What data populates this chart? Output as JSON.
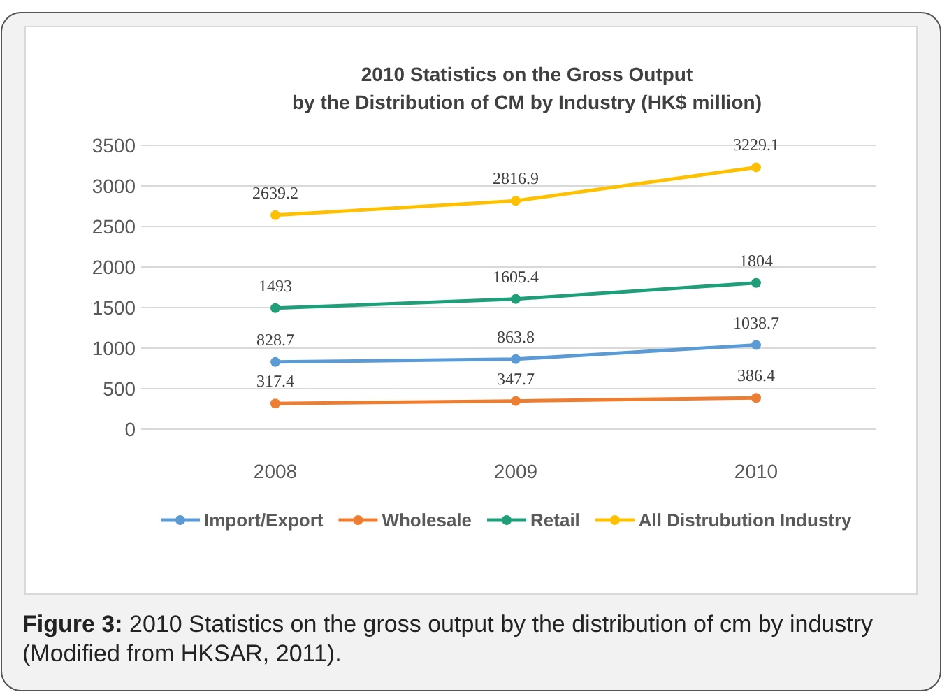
{
  "chart_data": {
    "type": "line",
    "title": "2010 Statistics on the Gross Output\nby the Distribution of CM by Industry (HK$ million)",
    "categories": [
      "2008",
      "2009",
      "2010"
    ],
    "series": [
      {
        "name": "Import/Export",
        "color": "#5b9bd5",
        "values": [
          828.7,
          863.8,
          1038.7
        ]
      },
      {
        "name": "Wholesale",
        "color": "#ed7d31",
        "values": [
          317.4,
          347.7,
          386.4
        ]
      },
      {
        "name": "Retail",
        "color": "#1f9e7a",
        "values": [
          1493,
          1605.4,
          1804
        ]
      },
      {
        "name": "All Distrubution Industry",
        "color": "#ffc000",
        "values": [
          2639.2,
          2816.9,
          3229.1
        ]
      }
    ],
    "ylim": [
      0,
      3500
    ],
    "yticks": [
      0,
      500,
      1000,
      1500,
      2000,
      2500,
      3000,
      3500
    ],
    "grid": "y",
    "legend": "bottom",
    "marker": "circle",
    "data_labels": true,
    "annotations": [
      "Figure 3: 2010 Statistics on the gross output by the distribution of cm by industry (Modified from HKSAR, 2011)."
    ]
  }
}
